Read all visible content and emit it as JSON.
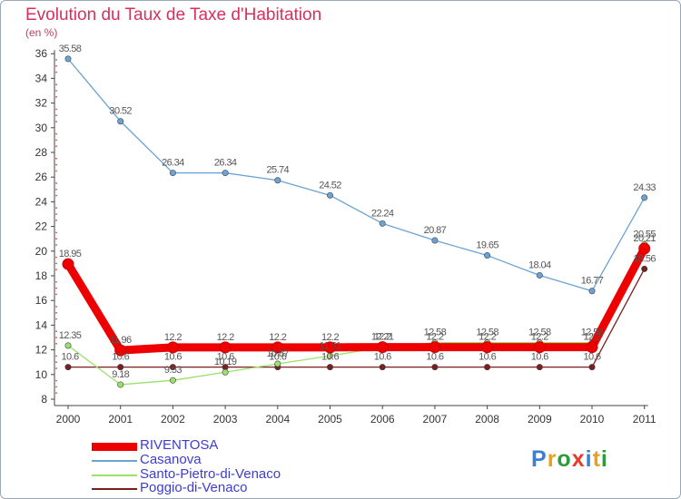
{
  "title": "Evolution du Taux de Taxe d'Habitation",
  "unit": "(en %)",
  "logo": {
    "letters": [
      "P",
      "r",
      "o",
      "x",
      "i",
      "t",
      "i"
    ],
    "colors": [
      "#3b7fd4",
      "#e9a21b",
      "#2f9a3c",
      "#e53b2c",
      "#3b7fd4",
      "#e9a21b",
      "#2f9a3c"
    ]
  },
  "chart_data": {
    "type": "line",
    "x": [
      "2000",
      "2001",
      "2002",
      "2003",
      "2004",
      "2005",
      "2006",
      "2007",
      "2008",
      "2009",
      "2010",
      "2011"
    ],
    "ylim": [
      8,
      36
    ],
    "yticks": [
      "8",
      "10",
      "12",
      "14",
      "16",
      "18",
      "20",
      "22",
      "24",
      "26",
      "28",
      "30",
      "32",
      "34",
      "36"
    ],
    "grid": false,
    "legend_position": "bottom-left",
    "series": [
      {
        "name": "RIVENTOSA",
        "color": "#ee0000",
        "values": [
          18.95,
          11.96,
          12.2,
          12.2,
          12.2,
          12.2,
          12.22,
          12.22,
          12.22,
          12.22,
          12.22,
          20.21
        ],
        "labels": [
          "18.95",
          "11.96",
          "12.2",
          "12.2",
          "12.2",
          "12.2",
          "12.2",
          "12.2",
          "12.2",
          "12.2",
          "12.2",
          "20.21"
        ]
      },
      {
        "name": "Casanova",
        "color": "#6aa3d4",
        "values": [
          35.58,
          30.52,
          26.34,
          26.34,
          25.74,
          24.52,
          22.24,
          20.87,
          19.65,
          18.04,
          16.77,
          24.33
        ],
        "labels": [
          "35.58",
          "30.52",
          "26.34",
          "26.34",
          "25.74",
          "24.52",
          "22.24",
          "20.87",
          "19.65",
          "18.04",
          "16.77",
          "24.33"
        ]
      },
      {
        "name": "Santo-Pietro-di-Venaco",
        "color": "#9be06a",
        "values": [
          12.35,
          9.18,
          9.53,
          10.19,
          10.87,
          11.51,
          12.21,
          12.58,
          12.58,
          12.58,
          12.58,
          20.55
        ],
        "labels": [
          "12.35",
          "9.18",
          "9.53",
          "10.19",
          "10.87",
          "11.51",
          "12.21",
          "12.58",
          "12.58",
          "12.58",
          "12.58",
          "20.55"
        ]
      },
      {
        "name": "Poggio-di-Venaco",
        "color": "#7a1f1f",
        "values": [
          10.6,
          10.6,
          10.6,
          10.6,
          10.6,
          10.6,
          10.6,
          10.6,
          10.6,
          10.6,
          10.6,
          18.56
        ],
        "labels": [
          "10.6",
          "10.6",
          "10.6",
          "10.6",
          "10.6",
          "10.6",
          "10.6",
          "10.6",
          "10.6",
          "10.6",
          "10.6",
          "18.56"
        ]
      }
    ]
  }
}
